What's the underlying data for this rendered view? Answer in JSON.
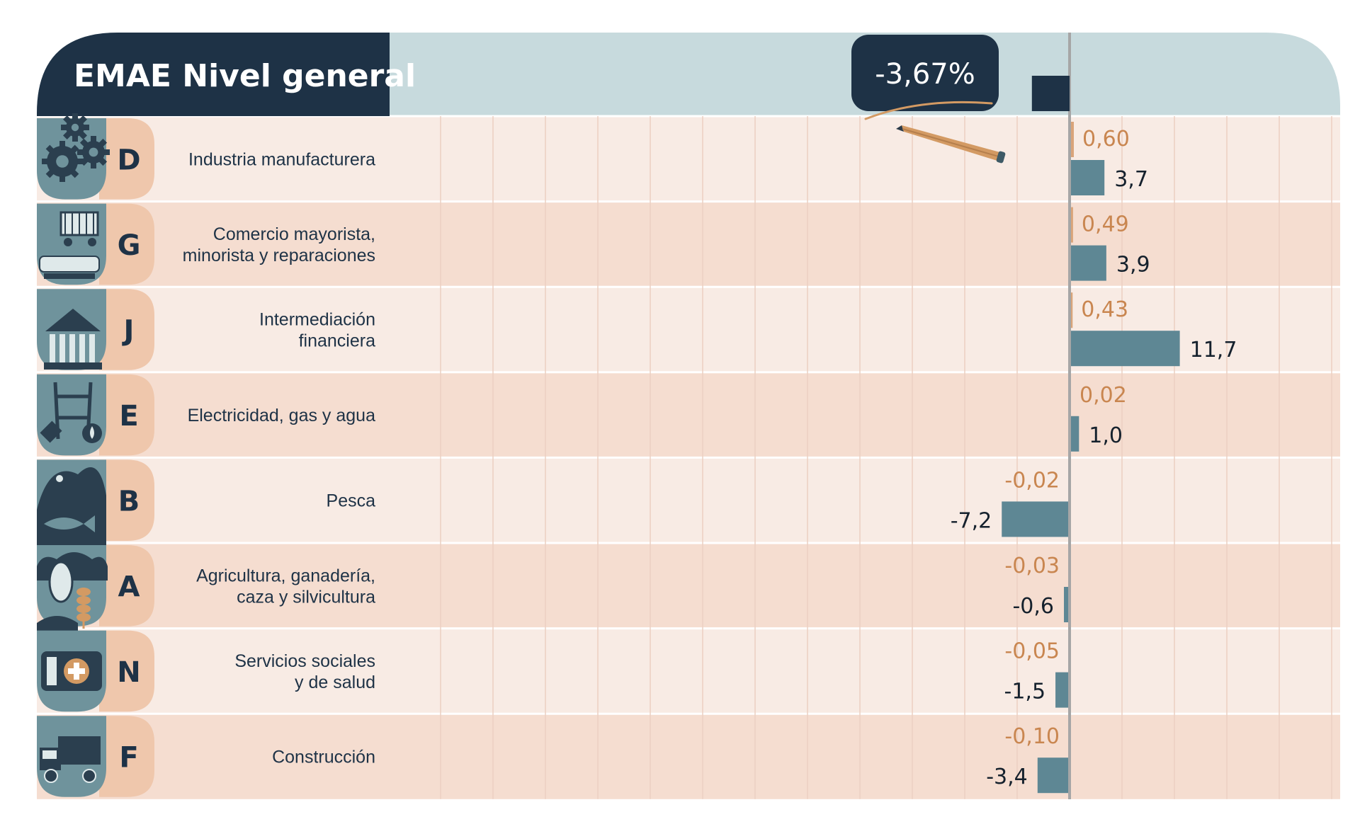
{
  "chart_data": {
    "type": "bar",
    "title": "EMAE Nivel general",
    "total_label": "-3,67%",
    "total_value": -3.67,
    "categories": [
      {
        "code": "D",
        "label_lines": [
          "Industria manufacturera"
        ],
        "icon": "gears-icon"
      },
      {
        "code": "G",
        "label_lines": [
          "Comercio mayorista,",
          "minorista y reparaciones"
        ],
        "icon": "shopping-cart-icon"
      },
      {
        "code": "J",
        "label_lines": [
          "Intermediación",
          "financiera"
        ],
        "icon": "bank-icon"
      },
      {
        "code": "E",
        "label_lines": [
          "Electricidad, gas y agua"
        ],
        "icon": "power-tower-icon"
      },
      {
        "code": "B",
        "label_lines": [
          "Pesca"
        ],
        "icon": "fish-hook-icon"
      },
      {
        "code": "A",
        "label_lines": [
          "Agricultura, ganadería,",
          "caza y silvicultura"
        ],
        "icon": "cow-wheat-icon"
      },
      {
        "code": "N",
        "label_lines": [
          "Servicios sociales",
          "y de salud"
        ],
        "icon": "medical-kit-icon"
      },
      {
        "code": "F",
        "label_lines": [
          "Construcción"
        ],
        "icon": "truck-icon"
      }
    ],
    "series": [
      {
        "values": [
          0.6,
          0.49,
          0.43,
          0.02,
          -0.02,
          -0.03,
          -0.05,
          -0.1
        ],
        "labels": [
          "0,60",
          "0,49",
          "0,43",
          "0,02",
          "-0,02",
          "-0,03",
          "-0,05",
          "-0,10"
        ],
        "color": "#d9a47a"
      },
      {
        "values": [
          3.7,
          3.9,
          11.7,
          1.0,
          -7.2,
          -0.6,
          -1.5,
          -3.4
        ],
        "labels": [
          "3,7",
          "3,9",
          "11,7",
          "1,0",
          "-7,2",
          "-0,6",
          "-1,5",
          "-3,4"
        ],
        "color": "#5e8794"
      }
    ],
    "colors": {
      "title_bg": "#1e3246",
      "header_bg": "#c7dadd",
      "row_light": "#f8ebe4",
      "row_dark": "#f5ddd0",
      "letter_tab": "#efc7ac",
      "icon_bg": "#6f939c",
      "grid_line": "#ecd0c2",
      "axis_line": "#a6a6a6",
      "pencil": "#d39a63"
    }
  }
}
